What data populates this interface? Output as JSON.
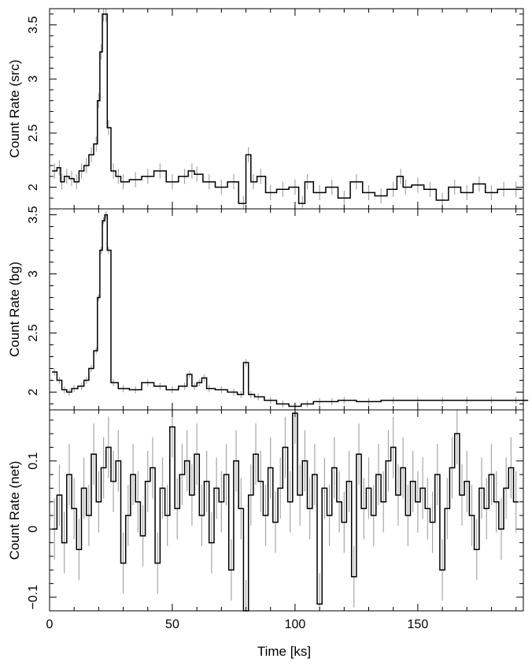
{
  "figure": {
    "xlabel": "Time [ks]",
    "line_color": "#000000",
    "error_color": "#a6a6a6",
    "frame_color": "#000000"
  },
  "chart_data": [
    {
      "type": "line",
      "panel": "top",
      "ylabel": "Count Rate (src)",
      "xlim": [
        0,
        193
      ],
      "ylim": [
        1.8,
        3.65
      ],
      "x_ticks": [
        0,
        50,
        100,
        150
      ],
      "y_ticks": [
        2,
        2.5,
        3,
        3.5
      ],
      "grid": false,
      "series": [
        {
          "x": [
            2,
            4,
            5,
            7,
            9,
            11,
            13,
            15,
            17,
            19,
            20,
            21,
            22,
            23,
            24,
            26,
            28,
            30,
            35,
            40,
            45,
            50,
            55,
            58,
            60,
            65,
            70,
            75,
            79,
            81,
            83,
            86,
            90,
            95,
            100,
            103,
            105,
            110,
            115,
            120,
            125,
            130,
            135,
            140,
            143,
            145,
            150,
            155,
            160,
            165,
            170,
            175,
            180,
            185,
            190
          ],
          "y": [
            2.15,
            2.18,
            2.05,
            2.1,
            2.08,
            2.05,
            2.15,
            2.2,
            2.3,
            2.4,
            2.8,
            3.25,
            3.6,
            3.6,
            2.55,
            2.15,
            2.1,
            2.05,
            2.07,
            2.1,
            2.15,
            2.05,
            2.1,
            2.15,
            2.12,
            2.05,
            2.0,
            2.05,
            1.85,
            2.3,
            2.05,
            2.1,
            1.95,
            1.98,
            2.0,
            1.85,
            2.05,
            1.95,
            2.0,
            1.9,
            2.05,
            1.95,
            1.92,
            1.98,
            2.1,
            2.0,
            2.02,
            1.98,
            1.88,
            2.0,
            1.95,
            2.03,
            1.95,
            1.98,
            1.98
          ],
          "error": 0.07
        }
      ]
    },
    {
      "type": "line",
      "panel": "middle",
      "ylabel": "Count Rate (bg)",
      "xlim": [
        0,
        193
      ],
      "ylim": [
        1.85,
        3.55
      ],
      "x_ticks": [
        0,
        50,
        100,
        150
      ],
      "y_ticks": [
        2,
        2.5,
        3,
        3.5
      ],
      "grid": false,
      "series": [
        {
          "x": [
            2,
            4,
            6,
            8,
            10,
            13,
            15,
            17,
            19,
            20,
            21,
            22,
            23,
            24,
            26,
            30,
            35,
            40,
            45,
            50,
            55,
            57,
            59,
            61,
            63,
            65,
            70,
            75,
            78,
            80,
            82,
            85,
            90,
            95,
            100,
            105,
            110,
            115,
            120,
            130,
            140,
            150,
            160,
            170,
            180,
            190
          ],
          "y": [
            2.17,
            2.1,
            2.02,
            2.0,
            2.03,
            2.05,
            2.1,
            2.2,
            2.35,
            2.8,
            3.2,
            3.45,
            3.5,
            3.2,
            2.08,
            2.03,
            2.02,
            2.08,
            2.05,
            2.02,
            2.05,
            2.15,
            2.05,
            2.08,
            2.12,
            2.03,
            2.02,
            2.0,
            1.98,
            2.25,
            1.98,
            1.96,
            1.93,
            1.9,
            1.88,
            1.9,
            1.92,
            1.92,
            1.93,
            1.92,
            1.93,
            1.93,
            1.93,
            1.93,
            1.93,
            1.93
          ],
          "error": 0.03
        }
      ]
    },
    {
      "type": "line",
      "panel": "bottom",
      "ylabel": "Count Rate (net)",
      "xlabel": "Time [ks]",
      "xlim": [
        0,
        193
      ],
      "ylim": [
        -0.12,
        0.175
      ],
      "x_ticks": [
        0,
        50,
        100,
        150
      ],
      "y_ticks": [
        -0.1,
        0,
        0.1
      ],
      "grid": false,
      "series": [
        {
          "x": [
            2,
            4,
            6,
            8,
            10,
            12,
            14,
            16,
            18,
            20,
            22,
            24,
            26,
            28,
            30,
            32,
            34,
            36,
            38,
            40,
            42,
            44,
            46,
            48,
            50,
            52,
            54,
            56,
            58,
            60,
            62,
            64,
            66,
            68,
            70,
            72,
            74,
            76,
            78,
            80,
            82,
            84,
            86,
            88,
            90,
            92,
            94,
            96,
            98,
            100,
            102,
            104,
            106,
            108,
            110,
            112,
            114,
            116,
            118,
            120,
            122,
            124,
            126,
            128,
            130,
            132,
            134,
            136,
            138,
            140,
            142,
            144,
            146,
            148,
            150,
            152,
            154,
            156,
            158,
            160,
            162,
            164,
            166,
            168,
            170,
            172,
            174,
            176,
            178,
            180,
            182,
            184,
            186,
            188,
            190
          ],
          "y": [
            0.0,
            0.05,
            -0.02,
            0.08,
            0.03,
            -0.03,
            0.06,
            0.02,
            0.11,
            0.04,
            0.09,
            0.12,
            0.07,
            0.1,
            -0.05,
            0.02,
            0.08,
            0.04,
            -0.01,
            0.07,
            0.09,
            -0.05,
            0.06,
            0.02,
            0.15,
            0.03,
            0.08,
            0.1,
            0.05,
            0.11,
            0.02,
            0.07,
            -0.02,
            0.06,
            0.04,
            0.08,
            -0.06,
            0.1,
            0.03,
            -0.12,
            0.05,
            0.11,
            0.07,
            0.02,
            0.09,
            0.01,
            0.06,
            0.12,
            0.04,
            0.17,
            0.05,
            0.1,
            0.03,
            0.08,
            -0.11,
            0.06,
            0.02,
            0.09,
            0.04,
            0.01,
            0.07,
            -0.07,
            0.11,
            0.03,
            0.06,
            0.02,
            0.08,
            0.04,
            0.1,
            0.12,
            0.05,
            0.09,
            0.02,
            0.07,
            0.04,
            0.06,
            0.03,
            0.01,
            0.08,
            -0.06,
            0.03,
            0.09,
            0.14,
            0.05,
            0.07,
            0.02,
            -0.03,
            0.06,
            0.03,
            0.08,
            0.04,
            0.0,
            0.06,
            0.09,
            0.04
          ],
          "error": 0.045
        }
      ]
    }
  ]
}
